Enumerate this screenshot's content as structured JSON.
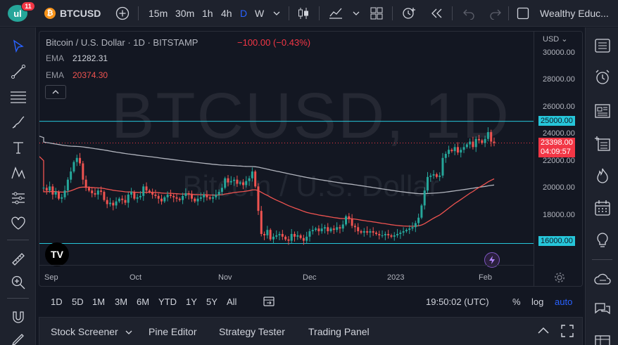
{
  "header": {
    "logo_text": "ul",
    "notification_count": "11",
    "symbol": "BTCUSD",
    "intervals": [
      "15m",
      "30m",
      "1h",
      "4h",
      "D",
      "W"
    ],
    "active_interval": "D",
    "account_name": "Wealthy Educ..."
  },
  "legend": {
    "title": "Bitcoin / U.S. Dollar · 1D · BITSTAMP",
    "change": "−100.00 (−0.43%)",
    "ema1_label": "EMA",
    "ema1_value": "21282.31",
    "ema2_label": "EMA",
    "ema2_value": "20374.30"
  },
  "watermark": {
    "line1": "BTCUSD, 1D",
    "line2": "Bitcoin / U.S. Dollar"
  },
  "price_axis": {
    "currency": "USD",
    "labels": [
      "30000.00",
      "28000.00",
      "26000.00",
      "24000.00",
      "22000.00",
      "20000.00",
      "18000.00"
    ],
    "line_tag_upper": "25000.00",
    "line_tag_lower": "16000.00",
    "current_price": "23398.00",
    "countdown": "04:09:57"
  },
  "time_axis": {
    "labels": [
      "Sep",
      "Oct",
      "Nov",
      "Dec",
      "2023",
      "Feb"
    ]
  },
  "range_bar": {
    "ranges": [
      "1D",
      "5D",
      "1M",
      "3M",
      "6M",
      "YTD",
      "1Y",
      "5Y",
      "All"
    ],
    "clock": "19:50:02 (UTC)",
    "percent": "%",
    "log": "log",
    "auto": "auto"
  },
  "bottom_panel": {
    "tabs": [
      "Stock Screener",
      "Pine Editor",
      "Strategy Tester",
      "Trading Panel"
    ]
  },
  "colors": {
    "up": "#26a69a",
    "down": "#ef5350",
    "ema_fast": "#b2b5be",
    "ema_slow": "#ef5350",
    "hline": "#26c6da",
    "accent": "#2962ff"
  },
  "chart_data": {
    "type": "candlestick",
    "symbol": "BTCUSD",
    "timeframe": "1D",
    "horizontal_lines": [
      25000,
      16000
    ],
    "close_series": [
      20100,
      19900,
      20200,
      19600,
      19800,
      19300,
      19400,
      19900,
      20700,
      21300,
      22000,
      22300,
      21900,
      20700,
      20100,
      19900,
      19700,
      19600,
      19900,
      19800,
      19200,
      18900,
      19000,
      18800,
      19100,
      19300,
      19200,
      19000,
      19600,
      19800,
      19300,
      19400,
      19500,
      20200,
      19900,
      19800,
      19600,
      19500,
      19300,
      19100,
      19400,
      19600,
      19500,
      19400,
      19300,
      19200,
      19500,
      19700,
      19600,
      19300,
      19100,
      19300,
      19400,
      19600,
      19400,
      19300,
      19400,
      19600,
      19800,
      20100,
      20800,
      20500,
      20600,
      20700,
      20400,
      20500,
      20300,
      20600,
      20800,
      21300,
      20200,
      18400,
      16700,
      16600,
      17000,
      16300,
      16500,
      16600,
      16700,
      16500,
      16300,
      16200,
      16700,
      16500,
      16600,
      16400,
      16200,
      16500,
      16900,
      17000,
      17100,
      16900,
      17100,
      17200,
      16900,
      17100,
      17000,
      17200,
      17100,
      17400,
      18000,
      17800,
      17300,
      17200,
      16900,
      16800,
      16900,
      16800,
      16900,
      16800,
      16700,
      16600,
      16600,
      16700,
      16600,
      16500,
      16600,
      16700,
      16800,
      16900,
      17000,
      17100,
      17200,
      17500,
      17900,
      18800,
      19900,
      20900,
      21000,
      21100,
      20900,
      21000,
      22300,
      22600,
      22900,
      22800,
      23100,
      22700,
      22900,
      23100,
      23300,
      23500,
      23100,
      23700,
      23600,
      23400,
      23700,
      24200,
      23500,
      23400
    ]
  }
}
